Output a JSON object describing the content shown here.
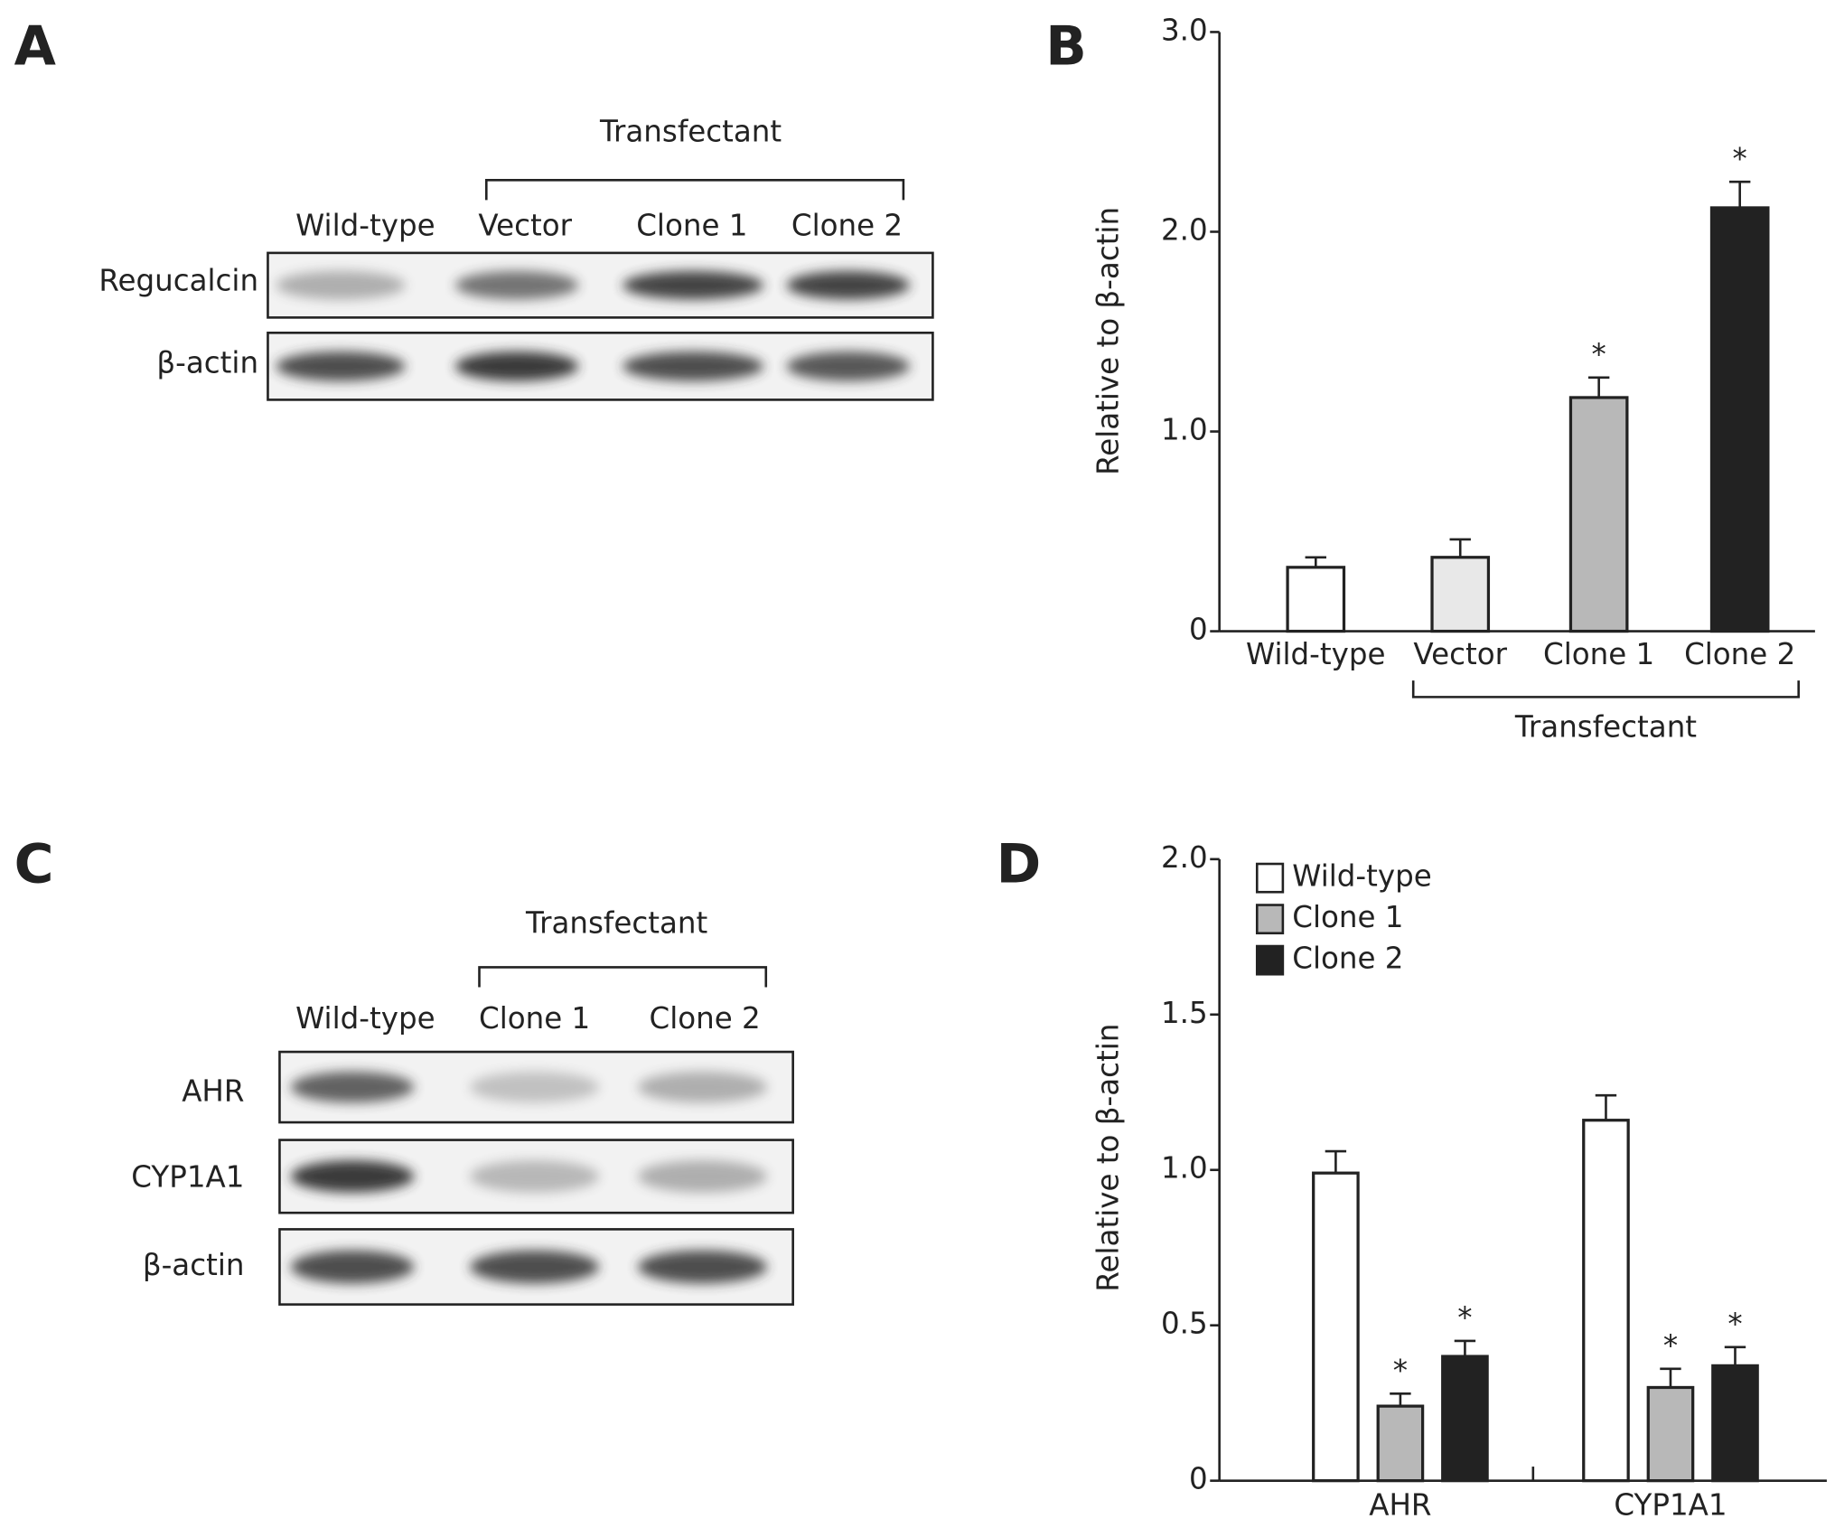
{
  "panels": [
    {
      "letter": "A",
      "title": "Transfectant",
      "lanes": [
        "Wild-type",
        "Vector",
        "Clone 1",
        "Clone 2"
      ],
      "rows": [
        "Regucalcin",
        "β-actin"
      ]
    },
    {
      "letter": "C",
      "title": "Transfectant",
      "lanes": [
        "Wild-type",
        "Clone 1",
        "Clone 2"
      ],
      "rows": [
        "AHR",
        "CYP1A1",
        "β-actin"
      ]
    }
  ],
  "chart_data": [
    {
      "type": "bar",
      "panel": "B",
      "ylabel": "Relative to β-actin",
      "categories": [
        "Wild-type",
        "Vector",
        "Clone 1",
        "Clone 2"
      ],
      "values": [
        0.32,
        0.37,
        1.17,
        2.12
      ],
      "errors": [
        0.05,
        0.09,
        0.1,
        0.13
      ],
      "colors": [
        "#ffffff",
        "#e8e8e8",
        "#b8b8b8",
        "#222222"
      ],
      "significance_mark": "*",
      "significant": [
        false,
        false,
        true,
        true
      ],
      "group_label": "Transfectant",
      "ylim": [
        0,
        3
      ],
      "yticks": [
        0,
        {
          "value": 1,
          "label": "1.0"
        },
        {
          "value": 2,
          "label": "2.0"
        },
        {
          "value": 3,
          "label": "3.0"
        }
      ]
    },
    {
      "type": "grouped_bar",
      "panel": "D",
      "ylabel": "Relative to β-actin",
      "categories": [
        "AHR",
        "CYP1A1"
      ],
      "series": [
        {
          "name": "Wild-type",
          "color": "#ffffff",
          "values": [
            0.99,
            1.16
          ],
          "errors": [
            0.07,
            0.08
          ],
          "significant": [
            false,
            false
          ]
        },
        {
          "name": "Clone 1",
          "color": "#b8b8b8",
          "values": [
            0.24,
            0.3
          ],
          "errors": [
            0.04,
            0.06
          ],
          "significant": [
            true,
            true
          ]
        },
        {
          "name": "Clone 2",
          "color": "#222222",
          "values": [
            0.4,
            0.37
          ],
          "errors": [
            0.05,
            0.06
          ],
          "significant": [
            true,
            true
          ]
        }
      ],
      "significance_mark": "*",
      "ylim": [
        0,
        2
      ],
      "yticks": [
        0,
        0.5,
        {
          "value": 1,
          "label": "1.0"
        },
        1.5,
        {
          "value": 2,
          "label": "2.0"
        }
      ]
    }
  ]
}
